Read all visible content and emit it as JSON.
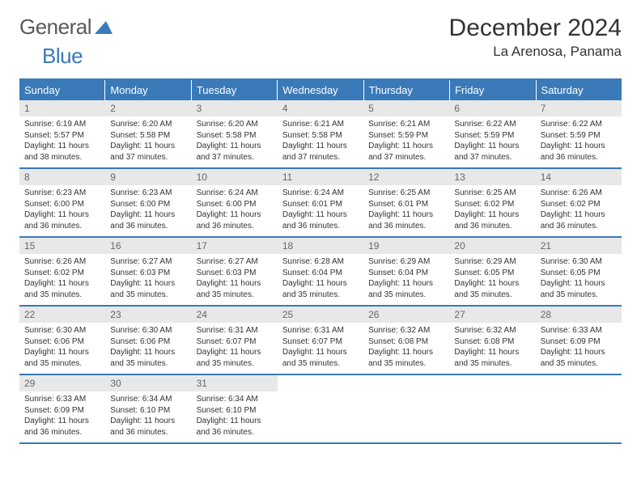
{
  "logo": {
    "general": "General",
    "blue": "Blue"
  },
  "title": "December 2024",
  "location": "La Arenosa, Panama",
  "colors": {
    "accent": "#3a7ab8",
    "header_text": "#ffffff",
    "daynum_bg": "#e8e8e8",
    "daynum_text": "#666666",
    "body_text": "#333333"
  },
  "day_headers": [
    "Sunday",
    "Monday",
    "Tuesday",
    "Wednesday",
    "Thursday",
    "Friday",
    "Saturday"
  ],
  "weeks": [
    [
      {
        "n": "1",
        "sr": "Sunrise: 6:19 AM",
        "ss": "Sunset: 5:57 PM",
        "d1": "Daylight: 11 hours",
        "d2": "and 38 minutes."
      },
      {
        "n": "2",
        "sr": "Sunrise: 6:20 AM",
        "ss": "Sunset: 5:58 PM",
        "d1": "Daylight: 11 hours",
        "d2": "and 37 minutes."
      },
      {
        "n": "3",
        "sr": "Sunrise: 6:20 AM",
        "ss": "Sunset: 5:58 PM",
        "d1": "Daylight: 11 hours",
        "d2": "and 37 minutes."
      },
      {
        "n": "4",
        "sr": "Sunrise: 6:21 AM",
        "ss": "Sunset: 5:58 PM",
        "d1": "Daylight: 11 hours",
        "d2": "and 37 minutes."
      },
      {
        "n": "5",
        "sr": "Sunrise: 6:21 AM",
        "ss": "Sunset: 5:59 PM",
        "d1": "Daylight: 11 hours",
        "d2": "and 37 minutes."
      },
      {
        "n": "6",
        "sr": "Sunrise: 6:22 AM",
        "ss": "Sunset: 5:59 PM",
        "d1": "Daylight: 11 hours",
        "d2": "and 37 minutes."
      },
      {
        "n": "7",
        "sr": "Sunrise: 6:22 AM",
        "ss": "Sunset: 5:59 PM",
        "d1": "Daylight: 11 hours",
        "d2": "and 36 minutes."
      }
    ],
    [
      {
        "n": "8",
        "sr": "Sunrise: 6:23 AM",
        "ss": "Sunset: 6:00 PM",
        "d1": "Daylight: 11 hours",
        "d2": "and 36 minutes."
      },
      {
        "n": "9",
        "sr": "Sunrise: 6:23 AM",
        "ss": "Sunset: 6:00 PM",
        "d1": "Daylight: 11 hours",
        "d2": "and 36 minutes."
      },
      {
        "n": "10",
        "sr": "Sunrise: 6:24 AM",
        "ss": "Sunset: 6:00 PM",
        "d1": "Daylight: 11 hours",
        "d2": "and 36 minutes."
      },
      {
        "n": "11",
        "sr": "Sunrise: 6:24 AM",
        "ss": "Sunset: 6:01 PM",
        "d1": "Daylight: 11 hours",
        "d2": "and 36 minutes."
      },
      {
        "n": "12",
        "sr": "Sunrise: 6:25 AM",
        "ss": "Sunset: 6:01 PM",
        "d1": "Daylight: 11 hours",
        "d2": "and 36 minutes."
      },
      {
        "n": "13",
        "sr": "Sunrise: 6:25 AM",
        "ss": "Sunset: 6:02 PM",
        "d1": "Daylight: 11 hours",
        "d2": "and 36 minutes."
      },
      {
        "n": "14",
        "sr": "Sunrise: 6:26 AM",
        "ss": "Sunset: 6:02 PM",
        "d1": "Daylight: 11 hours",
        "d2": "and 36 minutes."
      }
    ],
    [
      {
        "n": "15",
        "sr": "Sunrise: 6:26 AM",
        "ss": "Sunset: 6:02 PM",
        "d1": "Daylight: 11 hours",
        "d2": "and 35 minutes."
      },
      {
        "n": "16",
        "sr": "Sunrise: 6:27 AM",
        "ss": "Sunset: 6:03 PM",
        "d1": "Daylight: 11 hours",
        "d2": "and 35 minutes."
      },
      {
        "n": "17",
        "sr": "Sunrise: 6:27 AM",
        "ss": "Sunset: 6:03 PM",
        "d1": "Daylight: 11 hours",
        "d2": "and 35 minutes."
      },
      {
        "n": "18",
        "sr": "Sunrise: 6:28 AM",
        "ss": "Sunset: 6:04 PM",
        "d1": "Daylight: 11 hours",
        "d2": "and 35 minutes."
      },
      {
        "n": "19",
        "sr": "Sunrise: 6:29 AM",
        "ss": "Sunset: 6:04 PM",
        "d1": "Daylight: 11 hours",
        "d2": "and 35 minutes."
      },
      {
        "n": "20",
        "sr": "Sunrise: 6:29 AM",
        "ss": "Sunset: 6:05 PM",
        "d1": "Daylight: 11 hours",
        "d2": "and 35 minutes."
      },
      {
        "n": "21",
        "sr": "Sunrise: 6:30 AM",
        "ss": "Sunset: 6:05 PM",
        "d1": "Daylight: 11 hours",
        "d2": "and 35 minutes."
      }
    ],
    [
      {
        "n": "22",
        "sr": "Sunrise: 6:30 AM",
        "ss": "Sunset: 6:06 PM",
        "d1": "Daylight: 11 hours",
        "d2": "and 35 minutes."
      },
      {
        "n": "23",
        "sr": "Sunrise: 6:30 AM",
        "ss": "Sunset: 6:06 PM",
        "d1": "Daylight: 11 hours",
        "d2": "and 35 minutes."
      },
      {
        "n": "24",
        "sr": "Sunrise: 6:31 AM",
        "ss": "Sunset: 6:07 PM",
        "d1": "Daylight: 11 hours",
        "d2": "and 35 minutes."
      },
      {
        "n": "25",
        "sr": "Sunrise: 6:31 AM",
        "ss": "Sunset: 6:07 PM",
        "d1": "Daylight: 11 hours",
        "d2": "and 35 minutes."
      },
      {
        "n": "26",
        "sr": "Sunrise: 6:32 AM",
        "ss": "Sunset: 6:08 PM",
        "d1": "Daylight: 11 hours",
        "d2": "and 35 minutes."
      },
      {
        "n": "27",
        "sr": "Sunrise: 6:32 AM",
        "ss": "Sunset: 6:08 PM",
        "d1": "Daylight: 11 hours",
        "d2": "and 35 minutes."
      },
      {
        "n": "28",
        "sr": "Sunrise: 6:33 AM",
        "ss": "Sunset: 6:09 PM",
        "d1": "Daylight: 11 hours",
        "d2": "and 35 minutes."
      }
    ],
    [
      {
        "n": "29",
        "sr": "Sunrise: 6:33 AM",
        "ss": "Sunset: 6:09 PM",
        "d1": "Daylight: 11 hours",
        "d2": "and 36 minutes."
      },
      {
        "n": "30",
        "sr": "Sunrise: 6:34 AM",
        "ss": "Sunset: 6:10 PM",
        "d1": "Daylight: 11 hours",
        "d2": "and 36 minutes."
      },
      {
        "n": "31",
        "sr": "Sunrise: 6:34 AM",
        "ss": "Sunset: 6:10 PM",
        "d1": "Daylight: 11 hours",
        "d2": "and 36 minutes."
      },
      null,
      null,
      null,
      null
    ]
  ]
}
